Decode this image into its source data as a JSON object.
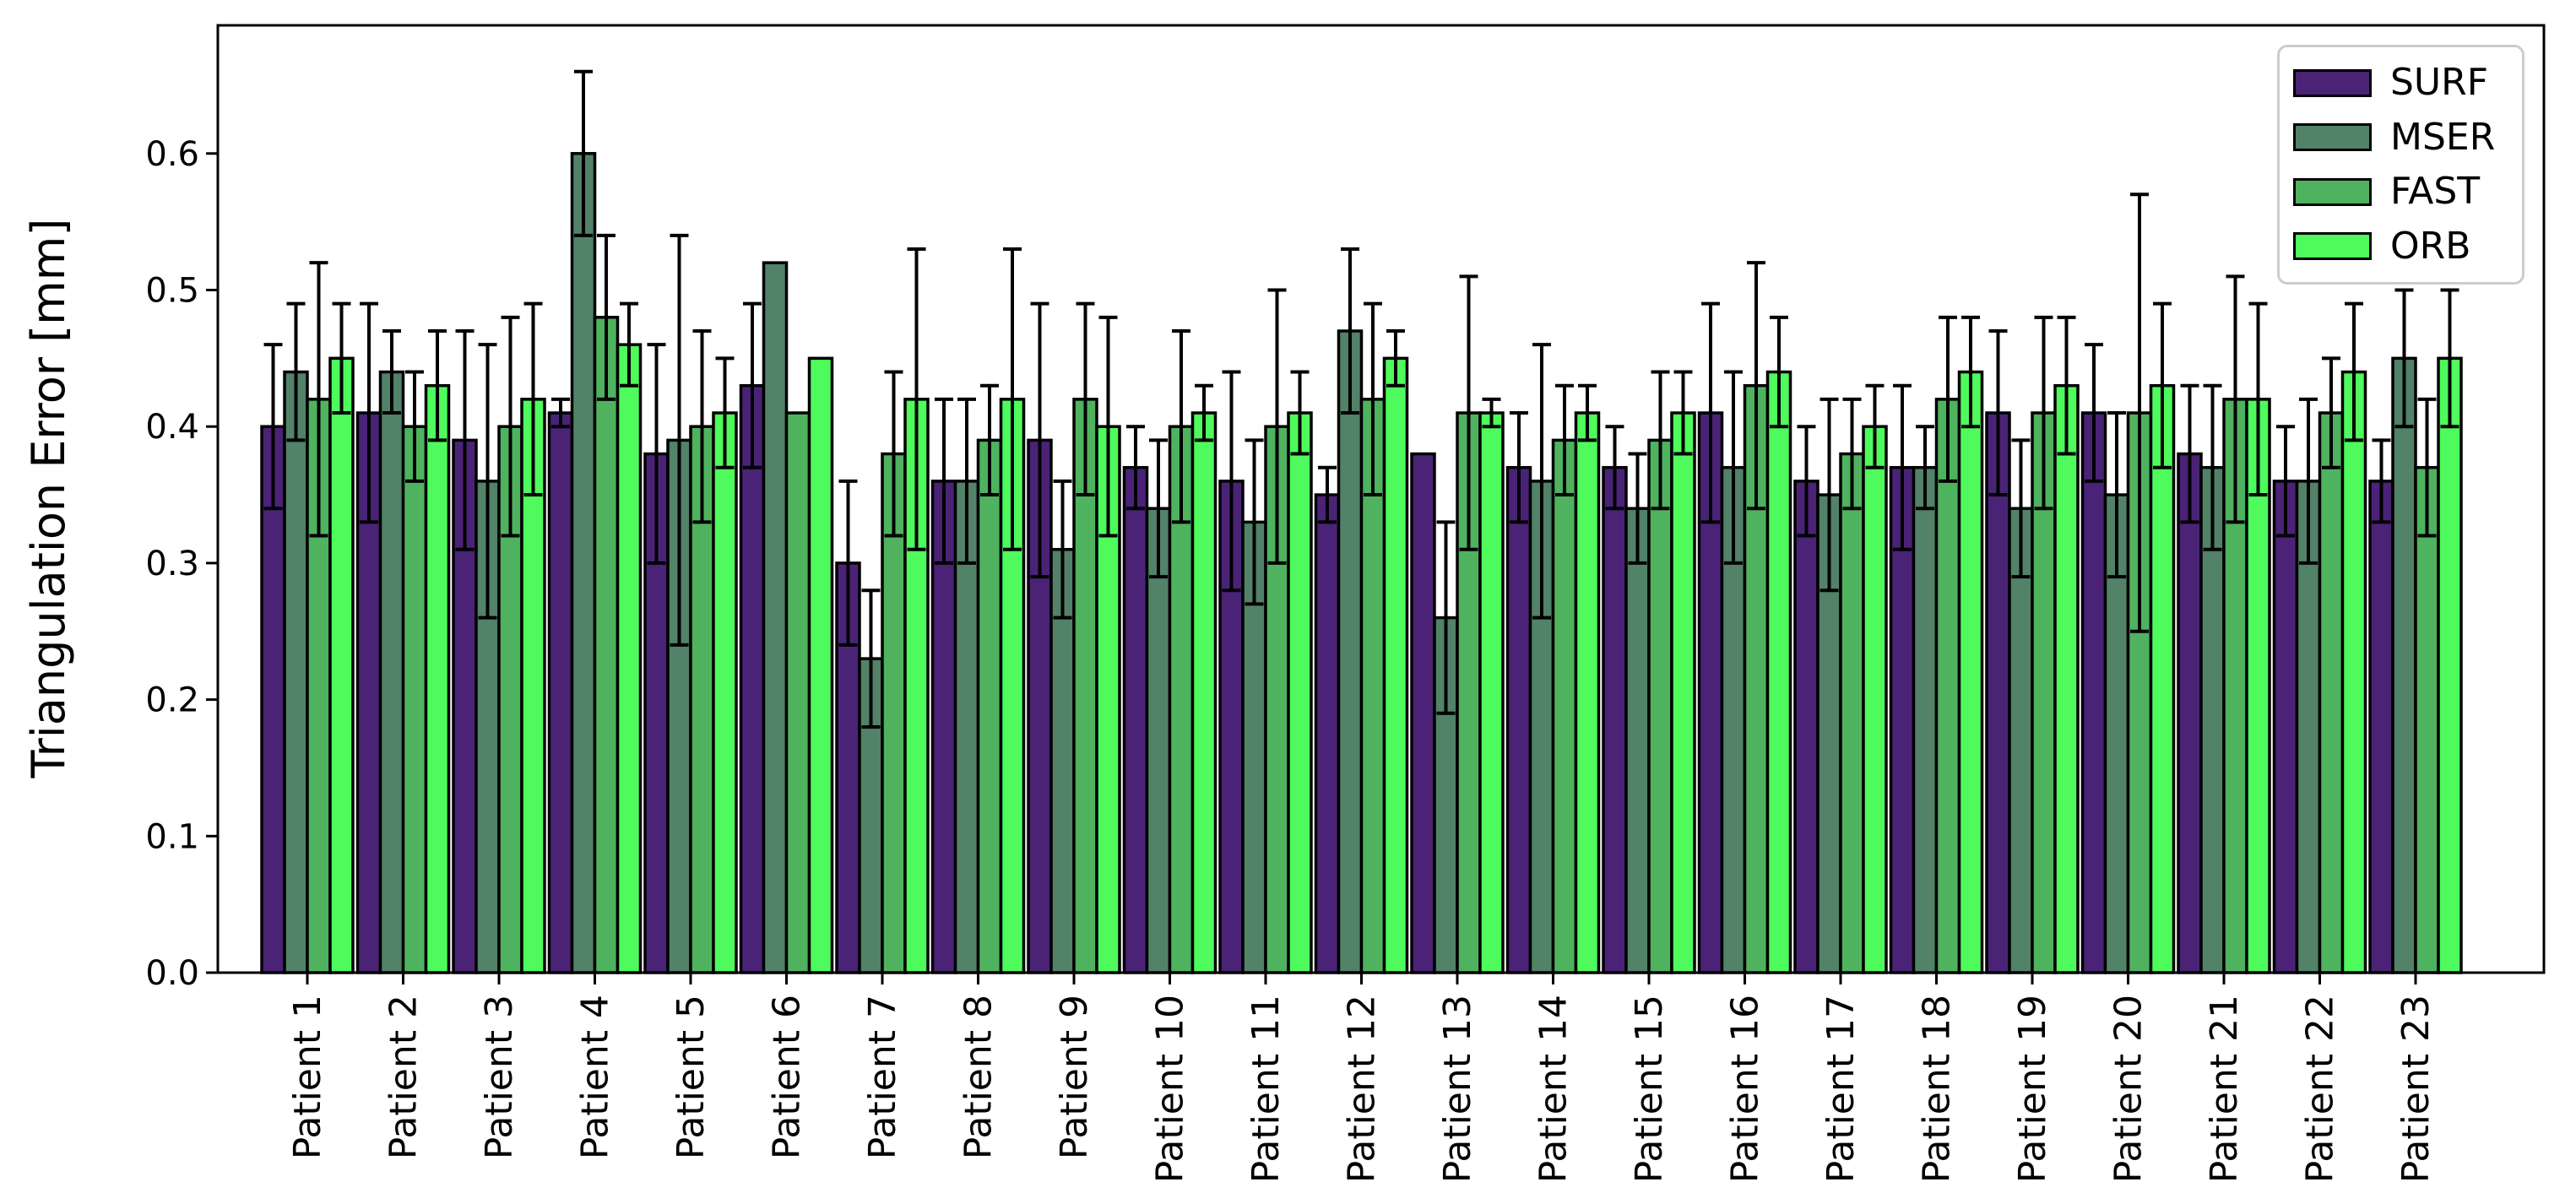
{
  "chart_data": {
    "type": "bar",
    "title": "",
    "xlabel": "",
    "ylabel": "Triangulation Error [mm]",
    "ylim": [
      0,
      0.694
    ],
    "yticks": [
      "0.0",
      "0.1",
      "0.2",
      "0.3",
      "0.4",
      "0.5",
      "0.6"
    ],
    "grid": false,
    "legend_position": "upper right",
    "categories": [
      "Patient 1",
      "Patient 2",
      "Patient 3",
      "Patient 4",
      "Patient 5",
      "Patient 6",
      "Patient 7",
      "Patient 8",
      "Patient 9",
      "Patient 10",
      "Patient 11",
      "Patient 12",
      "Patient 13",
      "Patient 14",
      "Patient 15",
      "Patient 16",
      "Patient 17",
      "Patient 18",
      "Patient 19",
      "Patient 20",
      "Patient 21",
      "Patient 22",
      "Patient 23"
    ],
    "series": [
      {
        "name": "SURF",
        "color": "#4a2377",
        "values": [
          0.4,
          0.41,
          0.39,
          0.41,
          0.38,
          0.43,
          0.3,
          0.36,
          0.39,
          0.37,
          0.36,
          0.35,
          0.38,
          0.37,
          0.37,
          0.41,
          0.36,
          0.37,
          0.41,
          0.41,
          0.38,
          0.36,
          0.36
        ],
        "errors": [
          0.06,
          0.08,
          0.08,
          0.01,
          0.08,
          0.06,
          0.06,
          0.06,
          0.1,
          0.03,
          0.08,
          0.02,
          0.0,
          0.04,
          0.03,
          0.08,
          0.04,
          0.06,
          0.06,
          0.05,
          0.05,
          0.04,
          0.03
        ]
      },
      {
        "name": "MSER",
        "color": "#528267",
        "values": [
          0.44,
          0.44,
          0.36,
          0.6,
          0.39,
          0.52,
          0.23,
          0.36,
          0.31,
          0.34,
          0.33,
          0.47,
          0.26,
          0.36,
          0.34,
          0.37,
          0.35,
          0.37,
          0.34,
          0.35,
          0.37,
          0.36,
          0.45
        ],
        "errors": [
          0.05,
          0.03,
          0.1,
          0.06,
          0.15,
          0.0,
          0.05,
          0.06,
          0.05,
          0.05,
          0.06,
          0.06,
          0.07,
          0.1,
          0.04,
          0.07,
          0.07,
          0.03,
          0.05,
          0.06,
          0.06,
          0.06,
          0.05
        ]
      },
      {
        "name": "FAST",
        "color": "#4fb25f",
        "values": [
          0.42,
          0.4,
          0.4,
          0.48,
          0.4,
          0.41,
          0.38,
          0.39,
          0.42,
          0.4,
          0.4,
          0.42,
          0.41,
          0.39,
          0.39,
          0.43,
          0.38,
          0.42,
          0.41,
          0.41,
          0.42,
          0.41,
          0.37
        ],
        "errors": [
          0.1,
          0.04,
          0.08,
          0.06,
          0.07,
          0.0,
          0.06,
          0.04,
          0.07,
          0.07,
          0.1,
          0.07,
          0.1,
          0.04,
          0.05,
          0.09,
          0.04,
          0.06,
          0.07,
          0.16,
          0.09,
          0.04,
          0.05
        ]
      },
      {
        "name": "ORB",
        "color": "#4efa5c",
        "values": [
          0.45,
          0.43,
          0.42,
          0.46,
          0.41,
          0.45,
          0.42,
          0.42,
          0.4,
          0.41,
          0.41,
          0.45,
          0.41,
          0.41,
          0.41,
          0.44,
          0.4,
          0.44,
          0.43,
          0.43,
          0.42,
          0.44,
          0.45
        ],
        "errors": [
          0.04,
          0.04,
          0.07,
          0.03,
          0.04,
          0.0,
          0.11,
          0.11,
          0.08,
          0.02,
          0.03,
          0.02,
          0.01,
          0.02,
          0.03,
          0.04,
          0.03,
          0.04,
          0.05,
          0.06,
          0.07,
          0.05,
          0.05
        ]
      }
    ]
  }
}
